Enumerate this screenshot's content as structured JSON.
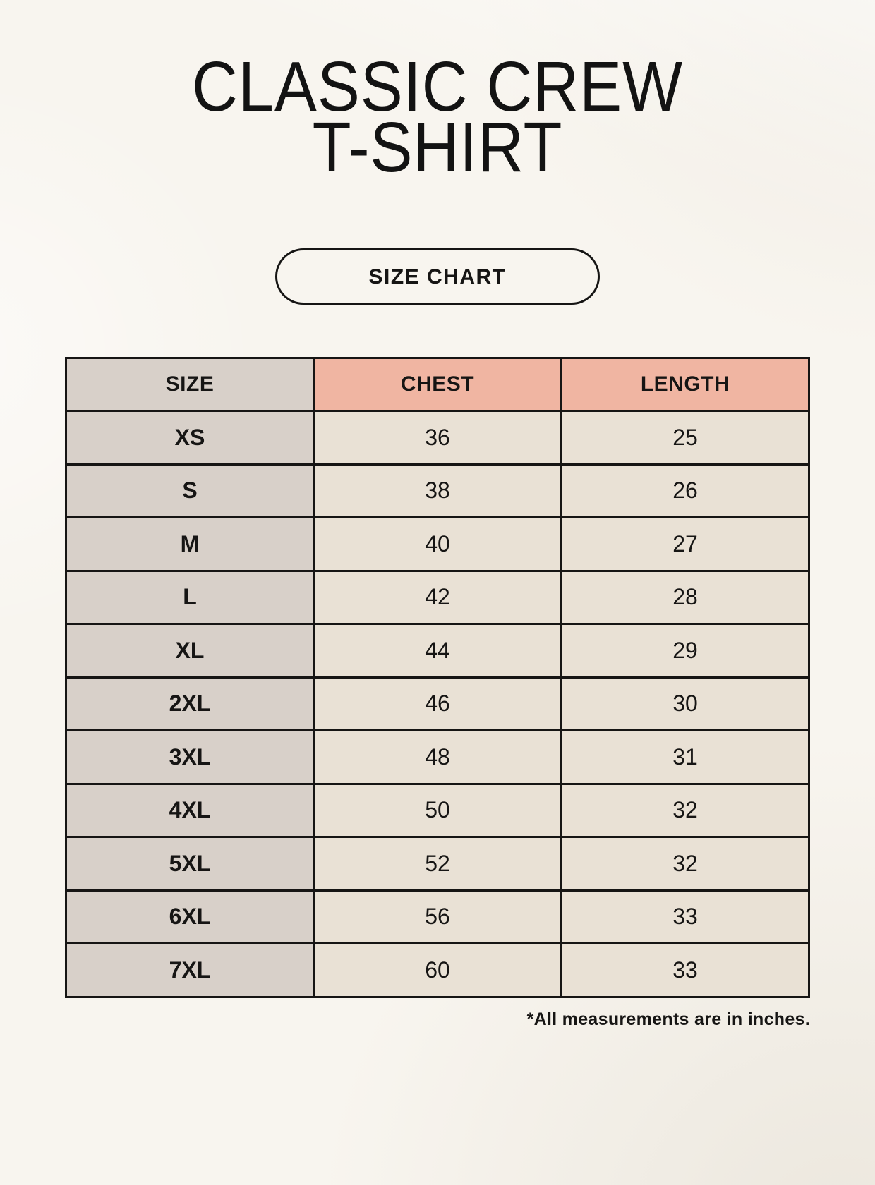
{
  "header": {
    "title_lines": [
      "CLASSIC CREW",
      "T-SHIRT"
    ],
    "badge_label": "SIZE CHART"
  },
  "colors": {
    "background": "#f8f5ef",
    "size_column_bg": "#d8d0c9",
    "header_accent_bg": "#f0b5a2",
    "value_cell_bg": "#e9e1d5",
    "border": "#161514",
    "text": "#161514"
  },
  "chart_data": {
    "type": "table",
    "title": "CLASSIC CREW T-SHIRT",
    "subtitle": "SIZE CHART",
    "columns": [
      "SIZE",
      "CHEST",
      "LENGTH"
    ],
    "rows": [
      [
        "XS",
        36,
        25
      ],
      [
        "S",
        38,
        26
      ],
      [
        "M",
        40,
        27
      ],
      [
        "L",
        42,
        28
      ],
      [
        "XL",
        44,
        29
      ],
      [
        "2XL",
        46,
        30
      ],
      [
        "3XL",
        48,
        31
      ],
      [
        "4XL",
        50,
        32
      ],
      [
        "5XL",
        52,
        32
      ],
      [
        "6XL",
        56,
        33
      ],
      [
        "7XL",
        60,
        33
      ]
    ],
    "footnote": "*All measurements are in inches."
  }
}
